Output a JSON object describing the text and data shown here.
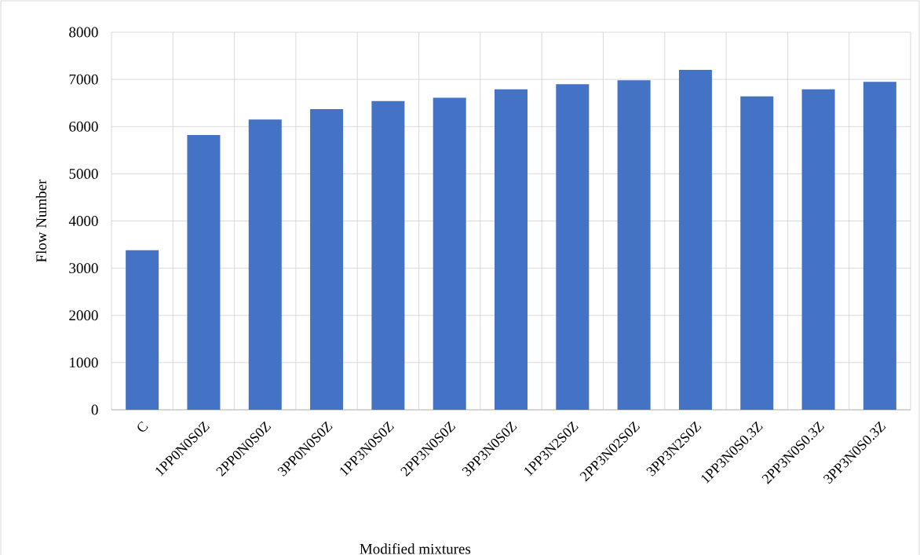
{
  "chart_data": {
    "type": "bar",
    "xlabel": "Modified mixtures",
    "ylabel": "Flow Number",
    "categories": [
      "C",
      "1PP0N0S0Z",
      "2PP0N0S0Z",
      "3PP0N0S0Z",
      "1PP3N0S0Z",
      "2PP3N0S0Z",
      "3PP3N0S0Z",
      "1PP3N2S0Z",
      "2PP3N02S0Z",
      "3PP3N2S0Z",
      "1PP3N0S0.3Z",
      "2PP3N0S0.3Z",
      "3PP3N0S0.3Z"
    ],
    "values": [
      3380,
      5820,
      6150,
      6370,
      6540,
      6610,
      6790,
      6900,
      6980,
      7200,
      6640,
      6790,
      6950
    ],
    "color": "#4472c4",
    "ylim": [
      0,
      8000
    ],
    "yticks": [
      0,
      1000,
      2000,
      3000,
      4000,
      5000,
      6000,
      7000,
      8000
    ],
    "grid": true
  }
}
